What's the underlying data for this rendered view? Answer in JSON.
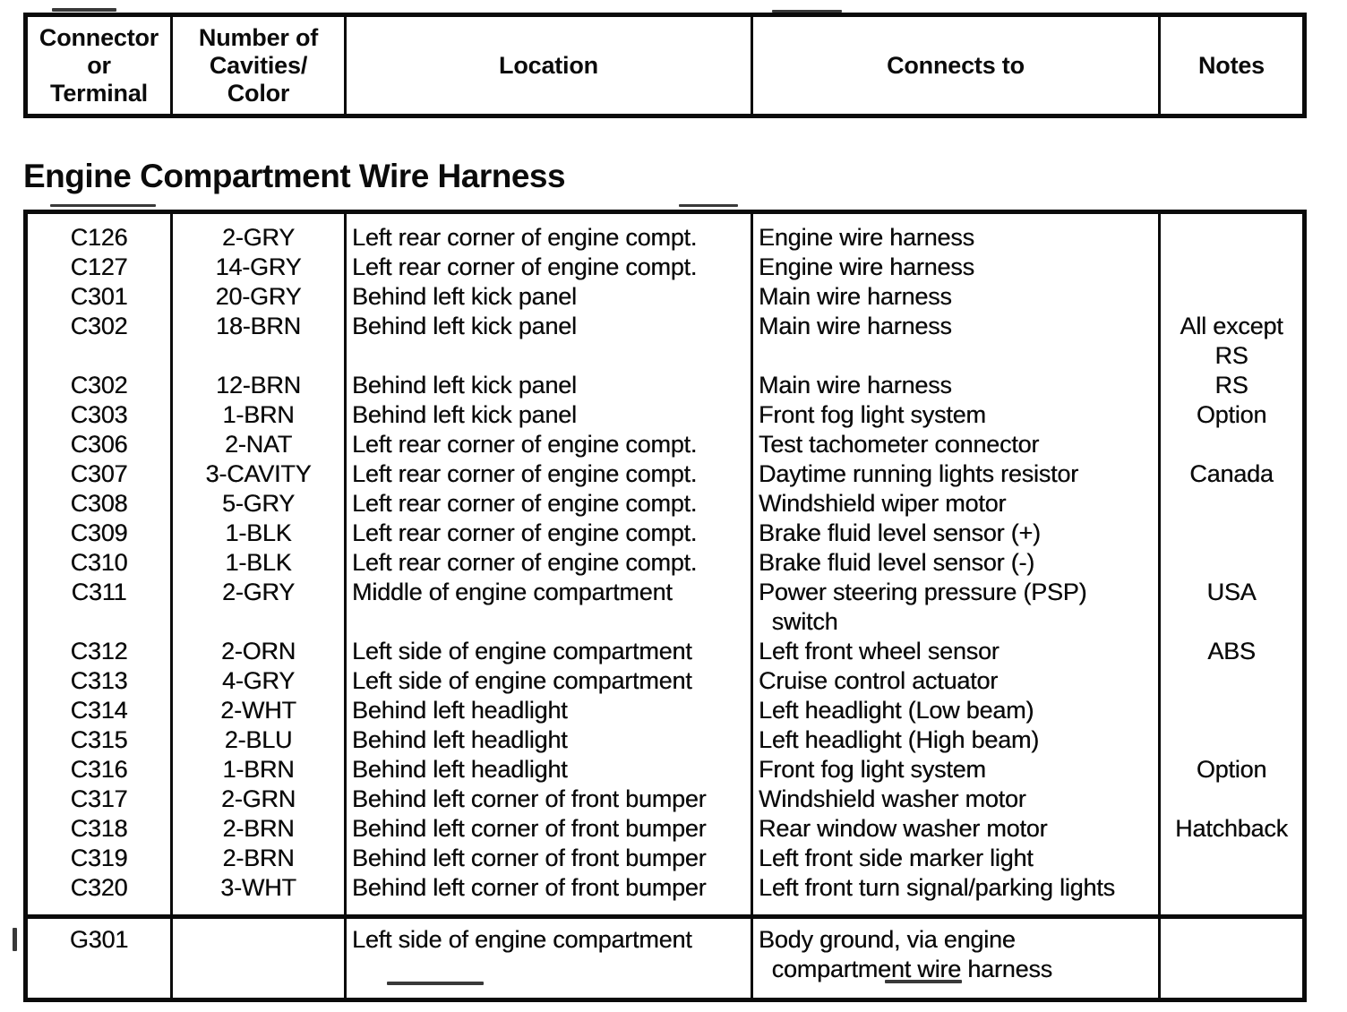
{
  "page": {
    "section_title": "Engine Compartment Wire Harness"
  },
  "colors": {
    "ink": "#0b0b0b",
    "paper": "#ffffff"
  },
  "header_table": {
    "columns": [
      {
        "label": "Connector\nor\nTerminal"
      },
      {
        "label": "Number of\nCavities/\nColor"
      },
      {
        "label": "Location"
      },
      {
        "label": "Connects to"
      },
      {
        "label": "Notes"
      }
    ]
  },
  "main_table": {
    "rows": [
      {
        "connector": "C126",
        "cavities": "2-GRY",
        "location": "Left rear corner of engine compt.",
        "connects_to": "Engine wire harness",
        "notes": ""
      },
      {
        "connector": "C127",
        "cavities": "14-GRY",
        "location": "Left rear corner of engine compt.",
        "connects_to": "Engine wire harness",
        "notes": ""
      },
      {
        "connector": "C301",
        "cavities": "20-GRY",
        "location": "Behind left kick panel",
        "connects_to": "Main wire harness",
        "notes": ""
      },
      {
        "connector": "C302",
        "cavities": "18-BRN",
        "location": "Behind left kick panel",
        "connects_to": "Main wire harness",
        "notes": "All except\nRS"
      },
      {
        "connector": "C302",
        "cavities": "12-BRN",
        "location": "Behind left kick panel",
        "connects_to": "Main wire harness",
        "notes": "RS"
      },
      {
        "connector": "C303",
        "cavities": "1-BRN",
        "location": "Behind left kick panel",
        "connects_to": "Front fog light system",
        "notes": "Option"
      },
      {
        "connector": "C306",
        "cavities": "2-NAT",
        "location": "Left rear corner of engine compt.",
        "connects_to": "Test tachometer connector",
        "notes": ""
      },
      {
        "connector": "C307",
        "cavities": "3-CAVITY",
        "location": "Left rear corner of engine compt.",
        "connects_to": "Daytime running lights resistor",
        "notes": "Canada"
      },
      {
        "connector": "C308",
        "cavities": "5-GRY",
        "location": "Left rear corner of engine compt.",
        "connects_to": "Windshield wiper motor",
        "notes": ""
      },
      {
        "connector": "C309",
        "cavities": "1-BLK",
        "location": "Left rear corner of engine compt.",
        "connects_to": "Brake fluid level sensor (+)",
        "notes": ""
      },
      {
        "connector": "C310",
        "cavities": "1-BLK",
        "location": "Left rear corner of engine compt.",
        "connects_to": "Brake fluid level sensor (-)",
        "notes": ""
      },
      {
        "connector": "C311",
        "cavities": "2-GRY",
        "location": "Middle of engine compartment",
        "connects_to": "Power steering pressure (PSP)\n  switch",
        "notes": "USA"
      },
      {
        "connector": "C312",
        "cavities": "2-ORN",
        "location": "Left side of engine compartment",
        "connects_to": "Left front wheel sensor",
        "notes": "ABS"
      },
      {
        "connector": "C313",
        "cavities": "4-GRY",
        "location": "Left side of engine compartment",
        "connects_to": "Cruise control actuator",
        "notes": ""
      },
      {
        "connector": "C314",
        "cavities": "2-WHT",
        "location": "Behind left headlight",
        "connects_to": "Left headlight (Low beam)",
        "notes": ""
      },
      {
        "connector": "C315",
        "cavities": "2-BLU",
        "location": "Behind left headlight",
        "connects_to": "Left headlight (High beam)",
        "notes": ""
      },
      {
        "connector": "C316",
        "cavities": "1-BRN",
        "location": "Behind left headlight",
        "connects_to": "Front fog light system",
        "notes": "Option"
      },
      {
        "connector": "C317",
        "cavities": "2-GRN",
        "location": "Behind left corner of front bumper",
        "connects_to": "Windshield washer motor",
        "notes": ""
      },
      {
        "connector": "C318",
        "cavities": "2-BRN",
        "location": "Behind left corner of front bumper",
        "connects_to": "Rear window washer motor",
        "notes": "Hatchback"
      },
      {
        "connector": "C319",
        "cavities": "2-BRN",
        "location": "Behind left corner of front bumper",
        "connects_to": "Left front side marker light",
        "notes": ""
      },
      {
        "connector": "C320",
        "cavities": "3-WHT",
        "location": "Behind left corner of front bumper",
        "connects_to": "Left front turn signal/parking lights",
        "notes": ""
      }
    ],
    "ground_rows": [
      {
        "connector": "G301",
        "cavities": "",
        "location": "Left side of engine compartment",
        "connects_to": "Body ground, via engine\n  compartment wire harness",
        "notes": ""
      }
    ]
  }
}
